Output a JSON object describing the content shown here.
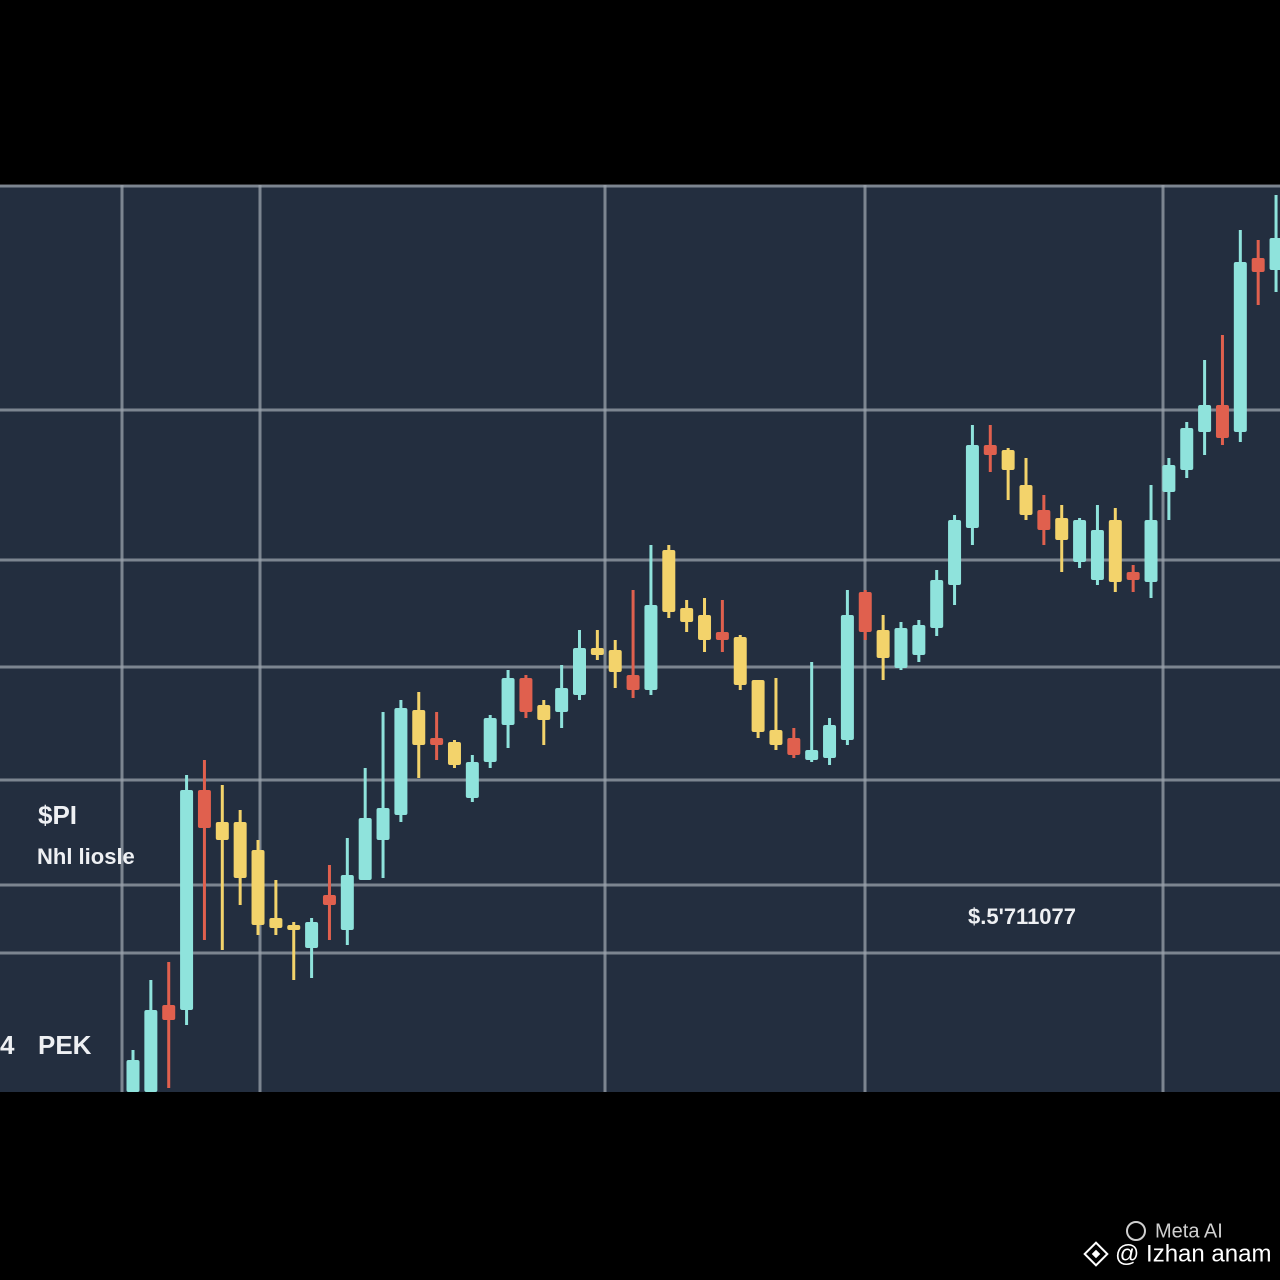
{
  "chart_data": {
    "type": "candlestick",
    "ylim": [
      0,
      907
    ],
    "open": [
      0,
      0,
      87,
      82,
      302,
      270,
      270,
      242,
      174,
      167,
      144,
      197,
      162,
      212,
      252,
      277,
      382,
      354,
      350,
      294,
      330,
      367,
      414,
      387,
      380,
      397,
      444,
      442,
      417,
      402,
      542,
      484,
      477,
      460,
      455,
      412,
      362,
      354,
      332,
      334,
      352,
      500,
      462,
      424,
      437,
      464,
      507,
      564,
      647,
      642,
      607,
      582,
      574,
      530,
      512,
      572,
      520,
      510,
      600,
      622,
      660,
      687,
      660,
      834,
      822
    ],
    "high": [
      42,
      112,
      130,
      317,
      332,
      307,
      282,
      252,
      212,
      170,
      174,
      227,
      254,
      324,
      380,
      392,
      400,
      380,
      352,
      337,
      377,
      422,
      417,
      392,
      427,
      462,
      462,
      452,
      502,
      547,
      547,
      492,
      494,
      492,
      457,
      412,
      414,
      364,
      430,
      374,
      502,
      502,
      477,
      470,
      472,
      522,
      577,
      667,
      667,
      644,
      634,
      597,
      587,
      574,
      587,
      584,
      527,
      607,
      634,
      670,
      732,
      757,
      862,
      852,
      897
    ],
    "low": [
      0,
      0,
      4,
      67,
      152,
      142,
      187,
      157,
      157,
      112,
      114,
      152,
      147,
      212,
      214,
      270,
      314,
      332,
      324,
      290,
      324,
      344,
      374,
      347,
      364,
      392,
      432,
      404,
      394,
      397,
      474,
      460,
      440,
      440,
      402,
      354,
      342,
      334,
      330,
      327,
      347,
      452,
      412,
      422,
      430,
      456,
      487,
      547,
      620,
      592,
      572,
      547,
      520,
      524,
      507,
      500,
      500,
      494,
      572,
      614,
      637,
      647,
      650,
      787,
      800
    ],
    "close": [
      32,
      82,
      72,
      302,
      264,
      252,
      214,
      167,
      164,
      162,
      170,
      187,
      217,
      274,
      284,
      384,
      347,
      347,
      327,
      330,
      374,
      414,
      380,
      372,
      404,
      444,
      437,
      420,
      402,
      487,
      480,
      470,
      452,
      452,
      407,
      360,
      347,
      337,
      342,
      367,
      477,
      460,
      434,
      464,
      467,
      512,
      572,
      647,
      637,
      622,
      577,
      562,
      552,
      572,
      562,
      510,
      512,
      572,
      627,
      664,
      687,
      654,
      830,
      820,
      854
    ],
    "colors": [
      "#8fe3dc",
      "#8fe3dc",
      "#e0604e",
      "#8fe3dc",
      "#e0604e",
      "#f3d36b",
      "#f3d36b",
      "#f3d36b",
      "#f3d36b",
      "#f3d36b",
      "#8fe3dc",
      "#e0604e",
      "#8fe3dc",
      "#8fe3dc",
      "#8fe3dc",
      "#8fe3dc",
      "#f3d36b",
      "#e0604e",
      "#f3d36b",
      "#8fe3dc",
      "#8fe3dc",
      "#8fe3dc",
      "#e0604e",
      "#f3d36b",
      "#8fe3dc",
      "#8fe3dc",
      "#f3d36b",
      "#f3d36b",
      "#e0604e",
      "#8fe3dc",
      "#f3d36b",
      "#f3d36b",
      "#f3d36b",
      "#e0604e",
      "#f3d36b",
      "#f3d36b",
      "#f3d36b",
      "#e0604e",
      "#8fe3dc",
      "#8fe3dc",
      "#8fe3dc",
      "#e0604e",
      "#f3d36b",
      "#8fe3dc",
      "#8fe3dc",
      "#8fe3dc",
      "#8fe3dc",
      "#8fe3dc",
      "#e0604e",
      "#f3d36b",
      "#f3d36b",
      "#e0604e",
      "#f3d36b",
      "#8fe3dc",
      "#8fe3dc",
      "#f3d36b",
      "#e0604e",
      "#8fe3dc",
      "#8fe3dc",
      "#8fe3dc",
      "#8fe3dc",
      "#e0604e",
      "#8fe3dc",
      "#e0604e",
      "#8fe3dc"
    ],
    "annotations": [
      "$PI",
      "Nhl liosle",
      "$.5'711077",
      "4",
      "PEK"
    ]
  },
  "watermark": {
    "brand": "Meta AI",
    "handle": "@ Izhan anam"
  }
}
